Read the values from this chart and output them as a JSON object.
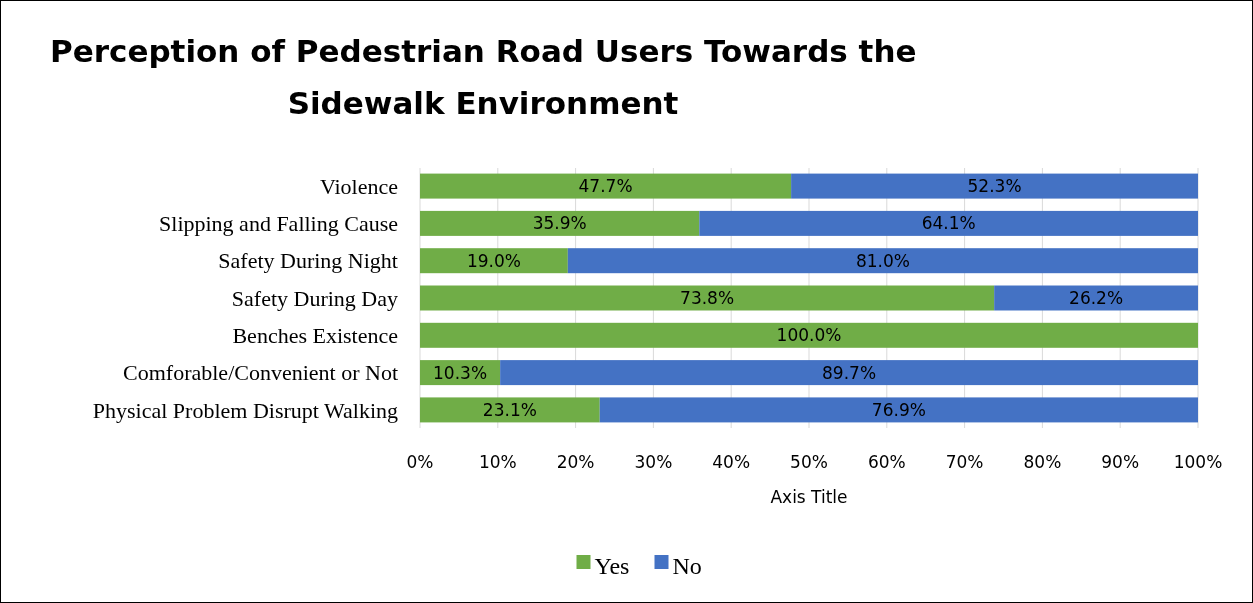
{
  "chart_data": {
    "type": "bar",
    "orientation": "horizontal",
    "stacked": true,
    "title": "Perception of Pedestrian Road Users Towards the Sidewalk Environment",
    "xlabel": "Axis Title",
    "categories": [
      "Violence",
      "Slipping and Falling Cause",
      "Safety During Night",
      "Safety During Day",
      "Benches Existence",
      "Comforable/Convenient  or Not",
      "Physical Problem Disrupt Walking"
    ],
    "series": [
      {
        "name": "Yes",
        "color": "#70ad47",
        "values": [
          47.7,
          35.9,
          19.0,
          73.8,
          100.0,
          10.3,
          23.1
        ],
        "value_labels": [
          "47.7%",
          "35.9%",
          "19.0%",
          "73.8%",
          "100.0%",
          "10.3%",
          "23.1%"
        ]
      },
      {
        "name": "No",
        "color": "#4472c4",
        "values": [
          52.3,
          64.1,
          81.0,
          26.2,
          0,
          89.7,
          76.9
        ],
        "value_labels": [
          "52.3%",
          "64.1%",
          "81.0%",
          "26.2%",
          null,
          "89.7%",
          "76.9%"
        ]
      }
    ],
    "xlim": [
      0,
      100
    ],
    "xticks": [
      {
        "value": 0,
        "label": "0%"
      },
      {
        "value": 10,
        "label": "10%"
      },
      {
        "value": 20,
        "label": "20%"
      },
      {
        "value": 30,
        "label": "30%"
      },
      {
        "value": 40,
        "label": "40%"
      },
      {
        "value": 50,
        "label": "50%"
      },
      {
        "value": 60,
        "label": "60%"
      },
      {
        "value": 70,
        "label": "70%"
      },
      {
        "value": 80,
        "label": "80%"
      },
      {
        "value": 90,
        "label": "90%"
      },
      {
        "value": 100,
        "label": "100%"
      }
    ],
    "grid": "x",
    "legend": "bottom"
  }
}
